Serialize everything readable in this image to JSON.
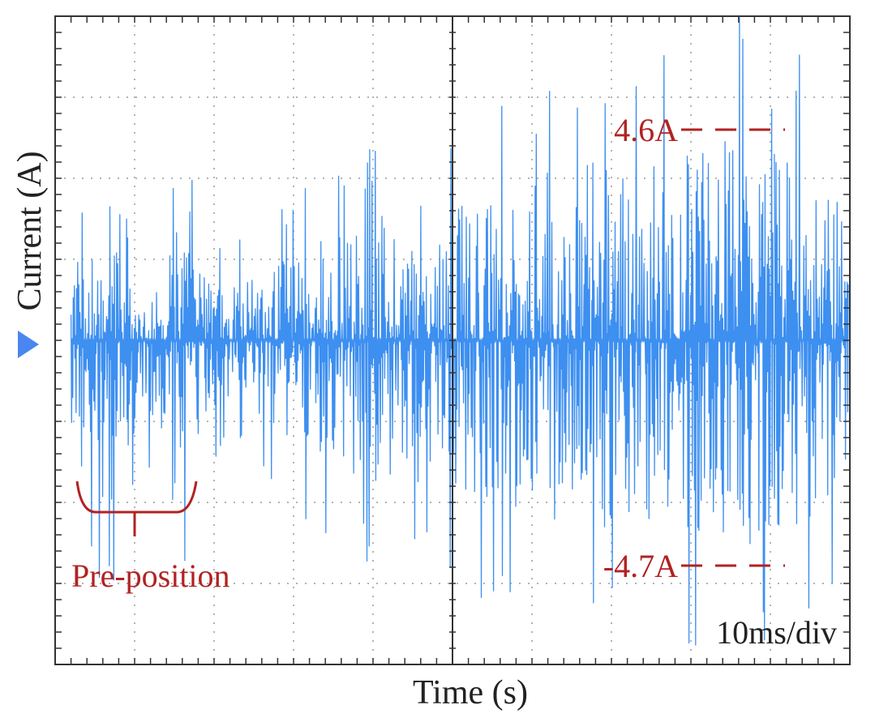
{
  "chart_data": {
    "type": "line",
    "title": "",
    "xlabel": "Time (s)",
    "ylabel": "Current (A)",
    "timebase": "10ms/div",
    "grid": true,
    "ylim": [
      -4.0,
      4.0
    ],
    "volts_per_div_A": 1.0,
    "divisions": {
      "x": 10,
      "y": 8
    },
    "series": [
      {
        "color": "#3d8ff0",
        "envelope": {
          "x_div": [
            0.2,
            0.5,
            0.75,
            0.9,
            1.05,
            1.3,
            1.5,
            1.6,
            1.7,
            1.95,
            2.2,
            2.6,
            3.0,
            3.5,
            4.0,
            4.5,
            4.9,
            5.2,
            5.6,
            6.0,
            6.5,
            7.0,
            7.5,
            8.0,
            8.5,
            9.0,
            9.5,
            9.9
          ],
          "max_A": [
            0.8,
            1.6,
            1.6,
            1.0,
            0.8,
            0.8,
            1.4,
            1.4,
            1.2,
            0.8,
            0.8,
            1.0,
            1.1,
            1.4,
            1.5,
            1.7,
            1.6,
            1.7,
            1.8,
            2.0,
            2.2,
            2.2,
            2.3,
            2.4,
            2.6,
            2.2,
            2.5,
            1.7
          ],
          "min_A": [
            -1.0,
            -2.0,
            -2.0,
            -1.4,
            -1.0,
            -1.0,
            -1.9,
            -1.9,
            -1.4,
            -0.9,
            -0.9,
            -1.0,
            -1.3,
            -1.7,
            -1.8,
            -1.8,
            -1.8,
            -2.0,
            -2.1,
            -2.2,
            -2.3,
            -2.4,
            -2.3,
            -2.4,
            -2.6,
            -2.5,
            -2.3,
            -1.8
          ]
        },
        "peak_max_A": 4.6,
        "peak_min_A": -4.7
      }
    ],
    "annotations": {
      "peak_max": "4.6A",
      "peak_min": "-4.7A",
      "pre_position": "Pre-position"
    }
  }
}
